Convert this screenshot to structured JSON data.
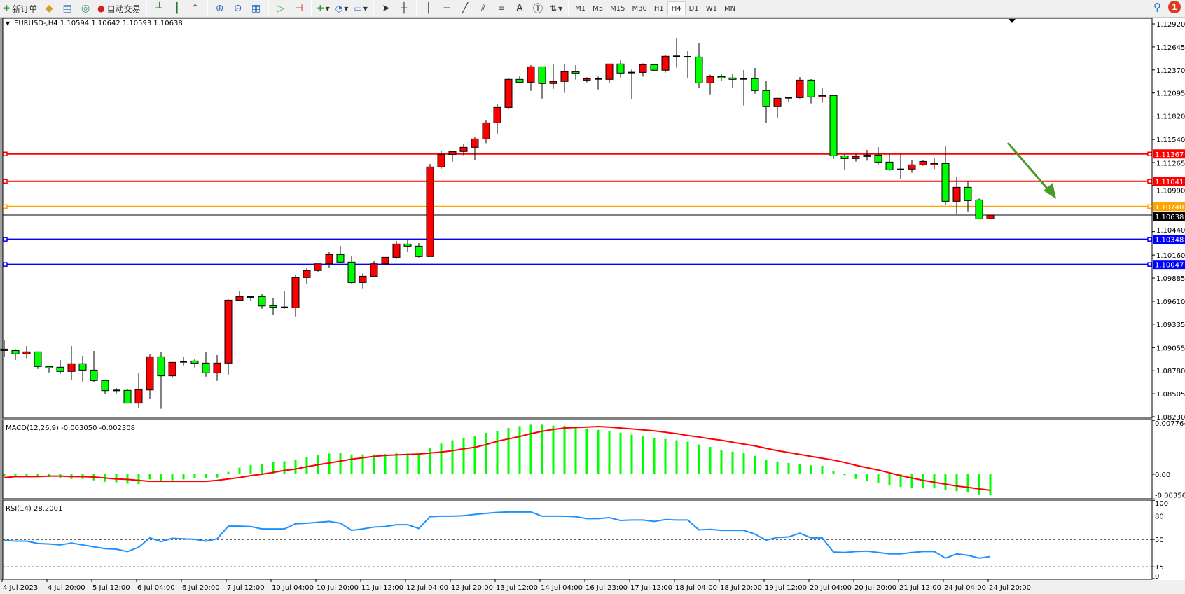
{
  "toolbar": {
    "new_order": "新订单",
    "auto_trading": "自动交易",
    "timeframes": [
      "M1",
      "M5",
      "M15",
      "M30",
      "H1",
      "H4",
      "D1",
      "W1",
      "MN"
    ],
    "active_timeframe": "H4",
    "notification_count": "1"
  },
  "chart": {
    "header": "EURUSD-,H4  1.10594 1.10642 1.10593 1.10638",
    "bull_color": "#ff0000",
    "bear_color": "#00ff00",
    "price_axis": [
      "1.12920",
      "1.12645",
      "1.12370",
      "1.12095",
      "1.11820",
      "1.11540",
      "1.11265",
      "1.10990",
      "1.10440",
      "1.10160",
      "1.09885",
      "1.09610",
      "1.09335",
      "1.09055",
      "1.08780",
      "1.08505",
      "1.08230"
    ],
    "horizontal_lines": [
      {
        "price": "1.11367",
        "color": "#ff0000"
      },
      {
        "price": "1.11041",
        "color": "#ff0000"
      },
      {
        "price": "1.10740",
        "color": "#ffa500"
      },
      {
        "price": "1.10348",
        "color": "#0000ff"
      },
      {
        "price": "1.10047",
        "color": "#0000ff"
      }
    ],
    "bid_line": {
      "price": "1.10638",
      "color": "#000000"
    },
    "arrow_color": "#4a9a2a",
    "time_axis": [
      "4 Jul 2023",
      "4 Jul 20:00",
      "5 Jul 12:00",
      "6 Jul 04:00",
      "6 Jul 20:00",
      "7 Jul 12:00",
      "10 Jul 04:00",
      "10 Jul 20:00",
      "11 Jul 12:00",
      "12 Jul 04:00",
      "12 Jul 20:00",
      "13 Jul 12:00",
      "14 Jul 04:00",
      "16 Jul 23:00",
      "17 Jul 12:00",
      "18 Jul 04:00",
      "18 Jul 20:00",
      "19 Jul 12:00",
      "20 Jul 04:00",
      "20 Jul 20:00",
      "21 Jul 12:00",
      "24 Jul 04:00",
      "24 Jul 20:00"
    ],
    "candles_ohlc": [
      [
        1.09038,
        1.0915,
        1.08941,
        1.09021
      ],
      [
        1.09021,
        1.09038,
        1.08907,
        1.0898
      ],
      [
        1.0898,
        1.09074,
        1.08927,
        1.09005
      ],
      [
        1.09005,
        1.09005,
        1.08801,
        1.08829
      ],
      [
        1.08829,
        1.08829,
        1.08759,
        1.08821
      ],
      [
        1.08821,
        1.08907,
        1.08743,
        1.08771
      ],
      [
        1.08771,
        1.09074,
        1.08667,
        1.08863
      ],
      [
        1.08863,
        1.08957,
        1.08651,
        1.08787
      ],
      [
        1.08787,
        1.09016,
        1.08642,
        1.08662
      ],
      [
        1.08662,
        1.08673,
        1.085,
        1.08542
      ],
      [
        1.08545,
        1.08573,
        1.08508,
        1.08545
      ],
      [
        1.08545,
        1.08556,
        1.08392,
        1.08392
      ],
      [
        1.08392,
        1.08748,
        1.08333,
        1.08553
      ],
      [
        1.0855,
        1.08974,
        1.08442,
        1.08946
      ],
      [
        1.08946,
        1.09007,
        1.08325,
        1.08718
      ],
      [
        1.08718,
        1.08879,
        1.08701,
        1.08879
      ],
      [
        1.08885,
        1.08949,
        1.08843,
        1.08885
      ],
      [
        1.08896,
        1.08916,
        1.08818,
        1.08868
      ],
      [
        1.08871,
        1.08999,
        1.08709,
        1.08754
      ],
      [
        1.08754,
        1.08966,
        1.08659,
        1.08871
      ],
      [
        1.08871,
        1.09632,
        1.08734,
        1.09623
      ],
      [
        1.09621,
        1.09727,
        1.09621,
        1.09665
      ],
      [
        1.0966,
        1.09676,
        1.09612,
        1.0966
      ],
      [
        1.09665,
        1.09693,
        1.0952,
        1.09553
      ],
      [
        1.09556,
        1.09651,
        1.09445,
        1.09537
      ],
      [
        1.09537,
        1.09726,
        1.0952,
        1.09537
      ],
      [
        1.09531,
        1.09927,
        1.09428,
        1.09891
      ],
      [
        1.09891,
        1.10002,
        1.09813,
        1.09975
      ],
      [
        1.09975,
        1.10055,
        1.09963,
        1.10055
      ],
      [
        1.10055,
        1.10195,
        1.10005,
        1.10167
      ],
      [
        1.10167,
        1.1027,
        1.10064,
        1.10075
      ],
      [
        1.10075,
        1.10153,
        1.09821,
        1.09832
      ],
      [
        1.09832,
        1.09941,
        1.09763,
        1.09907
      ],
      [
        1.09907,
        1.10086,
        1.09907,
        1.10055
      ],
      [
        1.10055,
        1.10133,
        1.10039,
        1.10133
      ],
      [
        1.10133,
        1.10328,
        1.10114,
        1.10292
      ],
      [
        1.10292,
        1.10348,
        1.10195,
        1.10267
      ],
      [
        1.10267,
        1.10303,
        1.10131,
        1.10142
      ],
      [
        1.10142,
        1.11248,
        1.10142,
        1.11212
      ],
      [
        1.11212,
        1.11398,
        1.11192,
        1.11362
      ],
      [
        1.11362,
        1.11396,
        1.11276,
        1.11396
      ],
      [
        1.11396,
        1.11482,
        1.11351,
        1.11446
      ],
      [
        1.11446,
        1.11574,
        1.11293,
        1.11546
      ],
      [
        1.11546,
        1.11775,
        1.11496,
        1.11738
      ],
      [
        1.11738,
        1.11959,
        1.11602,
        1.11922
      ],
      [
        1.11922,
        1.12268,
        1.11903,
        1.12257
      ],
      [
        1.12257,
        1.12293,
        1.12207,
        1.12223
      ],
      [
        1.12223,
        1.12427,
        1.1212,
        1.12407
      ],
      [
        1.12407,
        1.12407,
        1.12028,
        1.12207
      ],
      [
        1.12207,
        1.12444,
        1.12145,
        1.12232
      ],
      [
        1.12232,
        1.12444,
        1.12095,
        1.12349
      ],
      [
        1.12349,
        1.12427,
        1.12254,
        1.12332
      ],
      [
        1.12248,
        1.12282,
        1.12221,
        1.12265
      ],
      [
        1.12262,
        1.1229,
        1.12137,
        1.12262
      ],
      [
        1.12257,
        1.12441,
        1.12212,
        1.12441
      ],
      [
        1.12441,
        1.12485,
        1.12279,
        1.12332
      ],
      [
        1.12338,
        1.12374,
        1.1202,
        1.12338
      ],
      [
        1.1234,
        1.12449,
        1.1229,
        1.12432
      ],
      [
        1.12432,
        1.12432,
        1.12357,
        1.12366
      ],
      [
        1.12366,
        1.12549,
        1.12338,
        1.12533
      ],
      [
        1.12533,
        1.12753,
        1.12396,
        1.12533
      ],
      [
        1.12527,
        1.12594,
        1.12271,
        1.12527
      ],
      [
        1.12524,
        1.12694,
        1.12154,
        1.12215
      ],
      [
        1.12215,
        1.12313,
        1.12078,
        1.1229
      ],
      [
        1.1229,
        1.12318,
        1.12237,
        1.12274
      ],
      [
        1.12274,
        1.12327,
        1.12154,
        1.12257
      ],
      [
        1.12262,
        1.12368,
        1.11945,
        1.12262
      ],
      [
        1.12265,
        1.12393,
        1.12087,
        1.12123
      ],
      [
        1.12123,
        1.12243,
        1.11736,
        1.11931
      ],
      [
        1.11931,
        1.12039,
        1.11794,
        1.12031
      ],
      [
        1.12037,
        1.12051,
        1.11987,
        1.12037
      ],
      [
        1.12039,
        1.12285,
        1.12028,
        1.12248
      ],
      [
        1.12248,
        1.1226,
        1.1197,
        1.12048
      ],
      [
        1.12048,
        1.12159,
        1.11978,
        1.12065
      ],
      [
        1.12065,
        1.12065,
        1.11309,
        1.11345
      ],
      [
        1.11345,
        1.11365,
        1.11175,
        1.11312
      ],
      [
        1.11312,
        1.11365,
        1.11276,
        1.11337
      ],
      [
        1.11337,
        1.11415,
        1.11287,
        1.11354
      ],
      [
        1.11354,
        1.11449,
        1.11242,
        1.1127
      ],
      [
        1.1127,
        1.11365,
        1.11167,
        1.11178
      ],
      [
        1.11184,
        1.11365,
        1.11067,
        1.11184
      ],
      [
        1.11187,
        1.11298,
        1.11142,
        1.11237
      ],
      [
        1.11237,
        1.11298,
        1.11226,
        1.11278
      ],
      [
        1.11237,
        1.1132,
        1.11187,
        1.11253
      ],
      [
        1.11253,
        1.11465,
        1.10757,
        1.10802
      ],
      [
        1.10802,
        1.11089,
        1.10646,
        1.10969
      ],
      [
        1.10969,
        1.11036,
        1.10682,
        1.1081
      ],
      [
        1.10819,
        1.10835,
        1.10593,
        1.10593
      ],
      [
        1.10594,
        1.10642,
        1.10593,
        1.10638
      ]
    ]
  },
  "macd": {
    "label": "MACD(12,26,9) -0.003050 -0.002308",
    "axis": [
      "0.007764",
      "0.00",
      "-0.003565"
    ],
    "hist_color": "#00ff00",
    "signal_color": "#ff0000",
    "main": [
      -0.00028,
      -0.00028,
      -0.00028,
      -0.00034,
      -0.00041,
      -0.00061,
      -0.00068,
      -0.00068,
      -0.00088,
      -0.00109,
      -0.00116,
      -0.00136,
      -0.00143,
      -0.00075,
      -0.00095,
      -0.00088,
      -0.00075,
      -0.00061,
      -0.00061,
      -0.00048,
      0.00034,
      0.00095,
      0.00133,
      0.00153,
      0.00173,
      0.00187,
      0.00214,
      0.00248,
      0.00275,
      0.00299,
      0.00309,
      0.00286,
      0.00286,
      0.00286,
      0.00292,
      0.00306,
      0.00299,
      0.00292,
      0.00381,
      0.00442,
      0.0049,
      0.00524,
      0.00551,
      0.00598,
      0.00626,
      0.00666,
      0.00694,
      0.00714,
      0.00714,
      0.007,
      0.007,
      0.00673,
      0.0066,
      0.00639,
      0.00619,
      0.00598,
      0.00571,
      0.00551,
      0.00517,
      0.0051,
      0.0049,
      0.00469,
      0.00428,
      0.00394,
      0.00354,
      0.00326,
      0.00306,
      0.00265,
      0.00211,
      0.00184,
      0.00163,
      0.0015,
      0.00129,
      0.00122,
      0.00041,
      -0.00014,
      -0.00068,
      -0.00102,
      -0.00129,
      -0.00163,
      -0.00184,
      -0.00197,
      -0.00204,
      -0.00204,
      -0.00231,
      -0.00245,
      -0.00265,
      -0.00292,
      -0.00305
    ],
    "signal": [
      -0.00048,
      -0.00034,
      -0.00034,
      -0.00034,
      -0.00027,
      -0.00027,
      -0.00034,
      -0.00034,
      -0.00041,
      -0.00054,
      -0.00068,
      -0.00075,
      -0.00088,
      -0.00102,
      -0.00102,
      -0.00102,
      -0.00102,
      -0.00102,
      -0.00102,
      -0.00088,
      -0.00068,
      -0.00048,
      -0.0002,
      0.0,
      0.00027,
      0.00054,
      0.00075,
      0.00109,
      0.00136,
      0.00163,
      0.0019,
      0.00218,
      0.00238,
      0.00258,
      0.00272,
      0.00279,
      0.00286,
      0.00292,
      0.00306,
      0.0032,
      0.0034,
      0.00367,
      0.00388,
      0.00428,
      0.00476,
      0.0051,
      0.00544,
      0.00585,
      0.00619,
      0.00646,
      0.00666,
      0.00673,
      0.0068,
      0.00687,
      0.0068,
      0.00666,
      0.00653,
      0.00639,
      0.00626,
      0.00605,
      0.00585,
      0.00558,
      0.00537,
      0.0051,
      0.0049,
      0.00462,
      0.00435,
      0.00408,
      0.00374,
      0.0034,
      0.00313,
      0.00286,
      0.00258,
      0.00231,
      0.00204,
      0.0017,
      0.00129,
      0.00095,
      0.00061,
      0.0002,
      -0.0002,
      -0.00054,
      -0.00088,
      -0.00116,
      -0.00143,
      -0.0017,
      -0.0019,
      -0.00211,
      -0.00231
    ]
  },
  "rsi": {
    "label": "RSI(14) 28.2001",
    "axis": [
      "100",
      "80",
      "50",
      "15",
      "0"
    ],
    "color": "#1e90ff",
    "values": [
      49,
      47.8,
      47.8,
      44.8,
      44.2,
      43,
      45.4,
      43,
      40.6,
      38.2,
      37.6,
      34.5,
      40,
      52,
      47.2,
      51.4,
      50.8,
      50.2,
      47.8,
      50.8,
      67,
      67,
      66.4,
      63.4,
      63.4,
      63.4,
      70,
      70.7,
      71.9,
      73,
      70.7,
      61.6,
      63.4,
      65.8,
      66.4,
      68.8,
      68.8,
      64,
      79,
      79.7,
      79.7,
      80.3,
      82,
      83.3,
      84.5,
      85.1,
      85.1,
      85.1,
      79.7,
      79.7,
      79.7,
      79,
      76.6,
      76.6,
      77.8,
      74.2,
      74.8,
      74.8,
      73,
      75.4,
      74.8,
      74.8,
      62.2,
      62.8,
      61.6,
      61.6,
      61.6,
      56.8,
      49,
      52.6,
      53.2,
      58,
      52,
      52,
      33.9,
      33.3,
      34.5,
      35.1,
      33.3,
      31.5,
      31.5,
      33.3,
      34.5,
      34.5,
      26.1,
      31.5,
      29.7,
      26.1,
      28.2
    ]
  }
}
